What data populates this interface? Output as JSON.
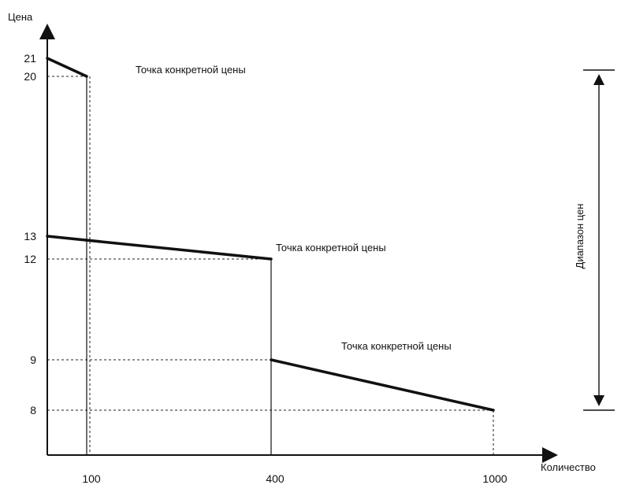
{
  "axes": {
    "y_title": "Цена",
    "x_title": "Количество"
  },
  "y_ticks": [
    {
      "value": 21,
      "label": "21"
    },
    {
      "value": 20,
      "label": "20"
    },
    {
      "value": 13,
      "label": "13"
    },
    {
      "value": 12,
      "label": "12"
    },
    {
      "value": 9,
      "label": "9"
    },
    {
      "value": 8,
      "label": "8"
    }
  ],
  "x_ticks": [
    {
      "value": 100,
      "label": "100"
    },
    {
      "value": 400,
      "label": "400"
    },
    {
      "value": 1000,
      "label": "1000"
    }
  ],
  "segments": [
    {
      "from": {
        "q": 0,
        "p": 21
      },
      "to": {
        "q": 100,
        "p": 20
      },
      "note": "Точка конкретной цены"
    },
    {
      "from": {
        "q": 0,
        "p": 13
      },
      "to": {
        "q": 400,
        "p": 12
      },
      "note": "Точка конкретной цены"
    },
    {
      "from": {
        "q": 400,
        "p": 9
      },
      "to": {
        "q": 1000,
        "p": 8
      },
      "note": "Точка конкретной цены"
    }
  ],
  "range": {
    "label": "Диапазон цен",
    "from": 8,
    "to": 20
  }
}
